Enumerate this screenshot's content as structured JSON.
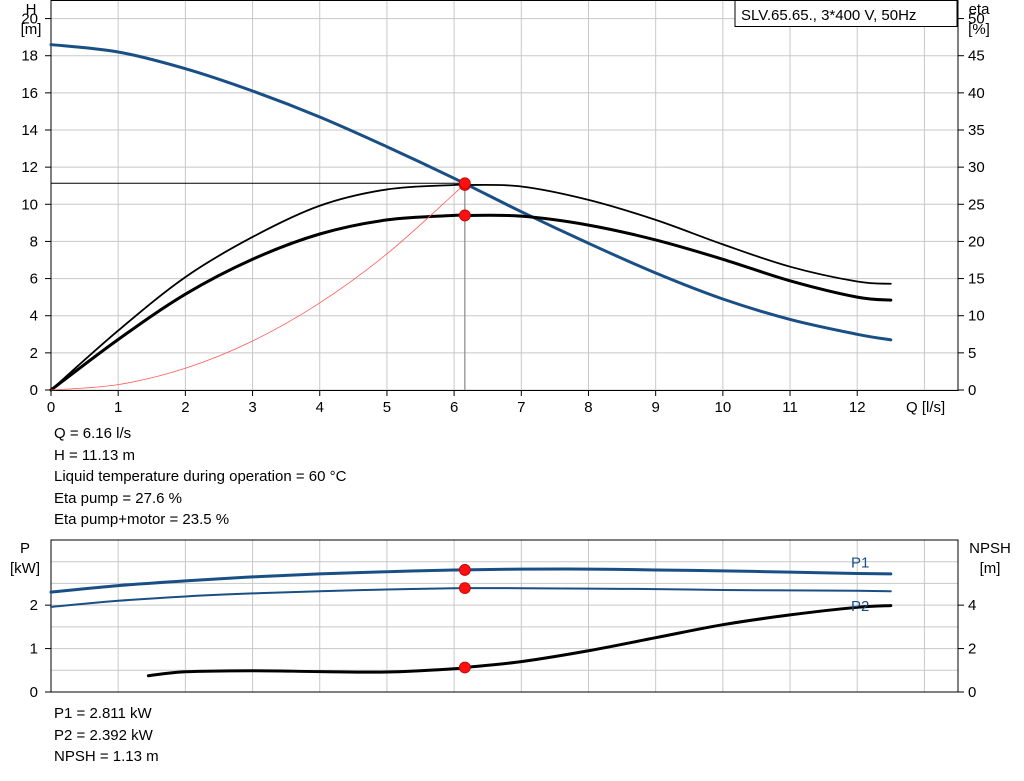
{
  "chart_data": [
    {
      "type": "line",
      "title": "SLV.65.65., 3*400 V, 50Hz",
      "xlabel": "Q [l/s]",
      "ylabel_left_name": "H",
      "ylabel_left_unit": "[m]",
      "ylabel_right_name": "eta",
      "ylabel_right_unit": "[%]",
      "xlim": [
        0,
        13.5
      ],
      "ylim_left": [
        0,
        21
      ],
      "ylim_right": [
        0,
        52.5
      ],
      "grid": true,
      "x_ticks": [
        "0",
        "1",
        "2",
        "3",
        "4",
        "5",
        "6",
        "7",
        "8",
        "9",
        "10",
        "11",
        "12"
      ],
      "y_ticks_left": [
        "0",
        "2",
        "4",
        "6",
        "8",
        "10",
        "12",
        "14",
        "16",
        "18",
        "20"
      ],
      "y_ticks_right": [
        "0",
        "5",
        "10",
        "15",
        "20",
        "25",
        "30",
        "35",
        "40",
        "45",
        "50"
      ],
      "series": [
        {
          "key": "head",
          "axis": "left",
          "color": "#1a4f86",
          "x": [
            0,
            1,
            2,
            3,
            4,
            5,
            6,
            7,
            8,
            9,
            10,
            11,
            12,
            12.5
          ],
          "y": [
            18.6,
            18.2,
            17.3,
            16.1,
            14.7,
            13.1,
            11.4,
            9.6,
            7.9,
            6.3,
            4.9,
            3.8,
            3.0,
            2.7
          ]
        },
        {
          "key": "eta_pump",
          "axis": "right",
          "color": "#000000",
          "x": [
            0,
            1,
            2,
            3,
            4,
            5,
            6,
            6.16,
            7,
            8,
            9,
            10,
            11,
            12,
            12.5
          ],
          "y": [
            0,
            8.0,
            15.2,
            20.6,
            24.8,
            27.0,
            27.6,
            27.6,
            27.4,
            25.6,
            22.9,
            19.6,
            16.6,
            14.6,
            14.3
          ]
        },
        {
          "key": "eta_pump_motor",
          "axis": "right",
          "color": "#000000",
          "x": [
            0,
            1,
            2,
            3,
            4,
            5,
            6,
            6.16,
            7,
            8,
            9,
            10,
            11,
            12,
            12.5
          ],
          "y": [
            0,
            6.8,
            12.9,
            17.6,
            21.0,
            22.9,
            23.5,
            23.5,
            23.4,
            22.2,
            20.2,
            17.6,
            14.7,
            12.5,
            12.1
          ]
        },
        {
          "key": "system_curve",
          "axis": "left",
          "color": "#ff5a5a",
          "x": [
            0,
            1,
            2,
            3,
            4,
            5,
            6,
            6.16
          ],
          "y": [
            0,
            0.29,
            1.17,
            2.64,
            4.69,
            7.33,
            10.56,
            11.13
          ]
        }
      ],
      "duty_point": {
        "Q": 6.16,
        "H": 11.13,
        "eta_pump": 27.6,
        "eta_pump_motor": 23.5
      }
    },
    {
      "type": "line",
      "ylabel_left_name": "P",
      "ylabel_left_unit": "[kW]",
      "ylabel_right_name": "NPSH",
      "ylabel_right_unit": "[m]",
      "xlim": [
        0,
        13.5
      ],
      "ylim_left": [
        0,
        3.5
      ],
      "ylim_right": [
        0,
        7.0
      ],
      "grid": true,
      "y_ticks_left": [
        "0",
        "1",
        "2"
      ],
      "y_ticks_right": [
        "0",
        "2",
        "4"
      ],
      "series": [
        {
          "key": "P1",
          "name": "P1",
          "axis": "left",
          "color": "#1a4f86",
          "x": [
            0,
            1,
            2,
            3,
            4,
            5,
            6,
            6.16,
            7,
            8,
            9,
            10,
            11,
            12,
            12.5
          ],
          "y": [
            2.3,
            2.45,
            2.56,
            2.65,
            2.72,
            2.77,
            2.81,
            2.811,
            2.83,
            2.83,
            2.81,
            2.79,
            2.76,
            2.73,
            2.72
          ]
        },
        {
          "key": "P2",
          "name": "P2",
          "axis": "left",
          "color": "#1a4f86",
          "x": [
            0,
            1,
            2,
            3,
            4,
            5,
            6,
            6.16,
            7,
            8,
            9,
            10,
            11,
            12,
            12.5
          ],
          "y": [
            1.96,
            2.1,
            2.2,
            2.27,
            2.32,
            2.36,
            2.39,
            2.392,
            2.39,
            2.38,
            2.37,
            2.35,
            2.34,
            2.33,
            2.32
          ]
        },
        {
          "key": "NPSH",
          "axis": "right",
          "color": "#000000",
          "x": [
            1.45,
            2,
            3,
            4,
            5,
            6,
            6.16,
            7,
            8,
            9,
            10,
            11,
            12,
            12.5
          ],
          "y": [
            0.75,
            0.93,
            0.98,
            0.94,
            0.92,
            1.07,
            1.13,
            1.4,
            1.9,
            2.5,
            3.1,
            3.55,
            3.9,
            3.98
          ]
        }
      ],
      "duty_point": {
        "Q": 6.16,
        "P1": 2.811,
        "P2": 2.392,
        "NPSH": 1.13
      }
    }
  ],
  "info_top": [
    "Q = 6.16 l/s",
    "H = 11.13 m",
    "Liquid temperature during operation = 60 °C",
    "Eta pump = 27.6 %",
    "Eta pump+motor = 23.5 %"
  ],
  "info_bottom": [
    "P1 = 2.811 kW",
    "P2 = 2.392 kW",
    "NPSH = 1.13 m"
  ]
}
